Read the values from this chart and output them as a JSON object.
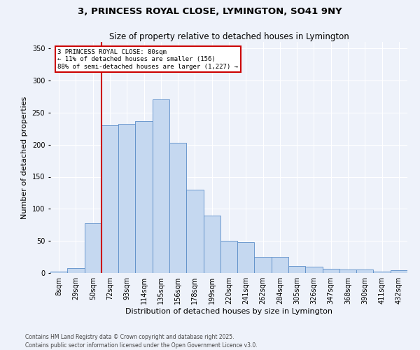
{
  "title1": "3, PRINCESS ROYAL CLOSE, LYMINGTON, SO41 9NY",
  "title2": "Size of property relative to detached houses in Lymington",
  "xlabel": "Distribution of detached houses by size in Lymington",
  "ylabel": "Number of detached properties",
  "categories": [
    "8sqm",
    "29sqm",
    "50sqm",
    "72sqm",
    "93sqm",
    "114sqm",
    "135sqm",
    "156sqm",
    "178sqm",
    "199sqm",
    "220sqm",
    "241sqm",
    "262sqm",
    "284sqm",
    "305sqm",
    "326sqm",
    "347sqm",
    "368sqm",
    "390sqm",
    "411sqm",
    "432sqm"
  ],
  "values": [
    2,
    8,
    77,
    230,
    232,
    237,
    270,
    203,
    130,
    90,
    50,
    48,
    25,
    25,
    11,
    10,
    7,
    5,
    5,
    2,
    4
  ],
  "bar_color": "#c5d8f0",
  "bar_edge_color": "#5b8dc8",
  "annotation_text": "3 PRINCESS ROYAL CLOSE: 80sqm\n← 11% of detached houses are smaller (156)\n88% of semi-detached houses are larger (1,227) →",
  "annotation_box_color": "#ffffff",
  "annotation_box_edge": "#cc0000",
  "red_line_index": 3.0,
  "ylim": [
    0,
    360
  ],
  "yticks": [
    0,
    50,
    100,
    150,
    200,
    250,
    300,
    350
  ],
  "footer": "Contains HM Land Registry data © Crown copyright and database right 2025.\nContains public sector information licensed under the Open Government Licence v3.0.",
  "bg_color": "#eef2fa",
  "plot_bg_color": "#eef2fa",
  "grid_color": "#ffffff",
  "title1_fontsize": 9.5,
  "title2_fontsize": 8.5,
  "ylabel_fontsize": 8,
  "xlabel_fontsize": 8,
  "tick_fontsize": 7,
  "footer_fontsize": 5.5
}
